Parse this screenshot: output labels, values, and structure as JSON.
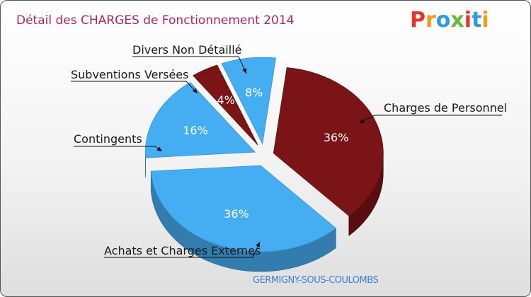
{
  "chart_data": {
    "type": "pie",
    "title": "Détail des CHARGES de Fonctionnement 2014",
    "slices": [
      {
        "name": "Charges de Personnel",
        "value": 36,
        "label": "36%",
        "color": "#7a1417"
      },
      {
        "name": "Achats et Charges Externes",
        "value": 36,
        "label": "36%",
        "color": "#45aef2"
      },
      {
        "name": "Contingents",
        "value": 16,
        "label": "16%",
        "color": "#45aef2"
      },
      {
        "name": "Subventions Versées",
        "value": 4,
        "label": "4%",
        "color": "#7a1417"
      },
      {
        "name": "Divers Non Détaillé",
        "value": 8,
        "label": "8%",
        "color": "#45aef2"
      }
    ]
  },
  "commune": "GERMIGNY-SOUS-COULOMBS",
  "logo": {
    "text": "Proxiti",
    "colors": [
      "#e8332a",
      "#f39a1c",
      "#2f9be0",
      "#6bb83a",
      "#e8332a",
      "#2f9be0",
      "#f39a1c"
    ]
  }
}
